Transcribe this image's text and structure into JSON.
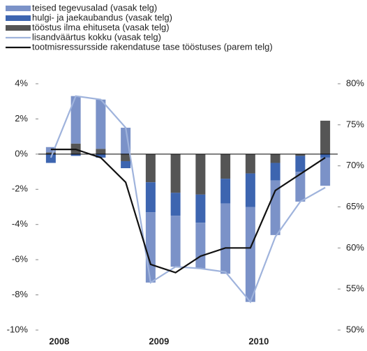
{
  "chart_data": {
    "type": "bar",
    "categories": [
      "2008",
      null,
      null,
      null,
      "2009",
      null,
      null,
      null,
      "2010",
      null,
      null,
      null
    ],
    "series": [
      {
        "name": "teised tegevusalad (vasak telg)",
        "type": "bar",
        "color": "#7b92c8",
        "values": [
          0.3,
          2.7,
          2.8,
          1.5,
          -4.0,
          -2.9,
          -2.6,
          -4.0,
          -5.4,
          -3.1,
          -1.7,
          -1.6
        ]
      },
      {
        "name": "hulgi- ja jaekaubandus (vasak telg)",
        "type": "bar",
        "color": "#3d65b0",
        "values": [
          -0.5,
          -0.1,
          -0.2,
          -0.4,
          -1.7,
          -1.3,
          -1.6,
          -1.4,
          -1.9,
          -1.0,
          -0.9,
          -0.2
        ]
      },
      {
        "name": "tööstus ilma ehituseta (vasak telg)",
        "type": "bar",
        "color": "#555555",
        "values": [
          0.1,
          0.6,
          0.3,
          -0.4,
          -1.6,
          -2.2,
          -2.3,
          -1.4,
          -1.1,
          -0.5,
          -0.1,
          1.9
        ]
      },
      {
        "name": "lisandväärtus kokku (vasak telg)",
        "type": "line",
        "color": "#9fb3dc",
        "values": [
          -0.2,
          3.3,
          3.1,
          1.5,
          -7.3,
          -6.4,
          -6.5,
          -6.7,
          -8.4,
          -4.7,
          -2.7,
          -1.9
        ]
      },
      {
        "name": "tootmisressursside rakendatuse tase tööstuses (parem telg)",
        "type": "line",
        "axis": "y2",
        "color": "#111111",
        "values": [
          72,
          72,
          71,
          68,
          58,
          57,
          59,
          60,
          60,
          67,
          69,
          71
        ]
      }
    ],
    "ylim": [
      -10,
      4
    ],
    "yticks": [
      {
        "value": -10,
        "label": "-10%"
      },
      {
        "value": -8,
        "label": "-8%"
      },
      {
        "value": -6,
        "label": "-6%"
      },
      {
        "value": -4,
        "label": "-4%"
      },
      {
        "value": -2,
        "label": "-2%"
      },
      {
        "value": 0,
        "label": "0%"
      },
      {
        "value": 2,
        "label": "2%"
      },
      {
        "value": 4,
        "label": "4%"
      }
    ],
    "y2lim": [
      50,
      80
    ],
    "y2ticks": [
      {
        "value": 50,
        "label": "50%"
      },
      {
        "value": 55,
        "label": "55%"
      },
      {
        "value": 60,
        "label": "60%"
      },
      {
        "value": 65,
        "label": "65%"
      },
      {
        "value": 70,
        "label": "70%"
      },
      {
        "value": 75,
        "label": "75%"
      },
      {
        "value": 80,
        "label": "80%"
      }
    ],
    "grid": false,
    "legend": "top-left"
  }
}
